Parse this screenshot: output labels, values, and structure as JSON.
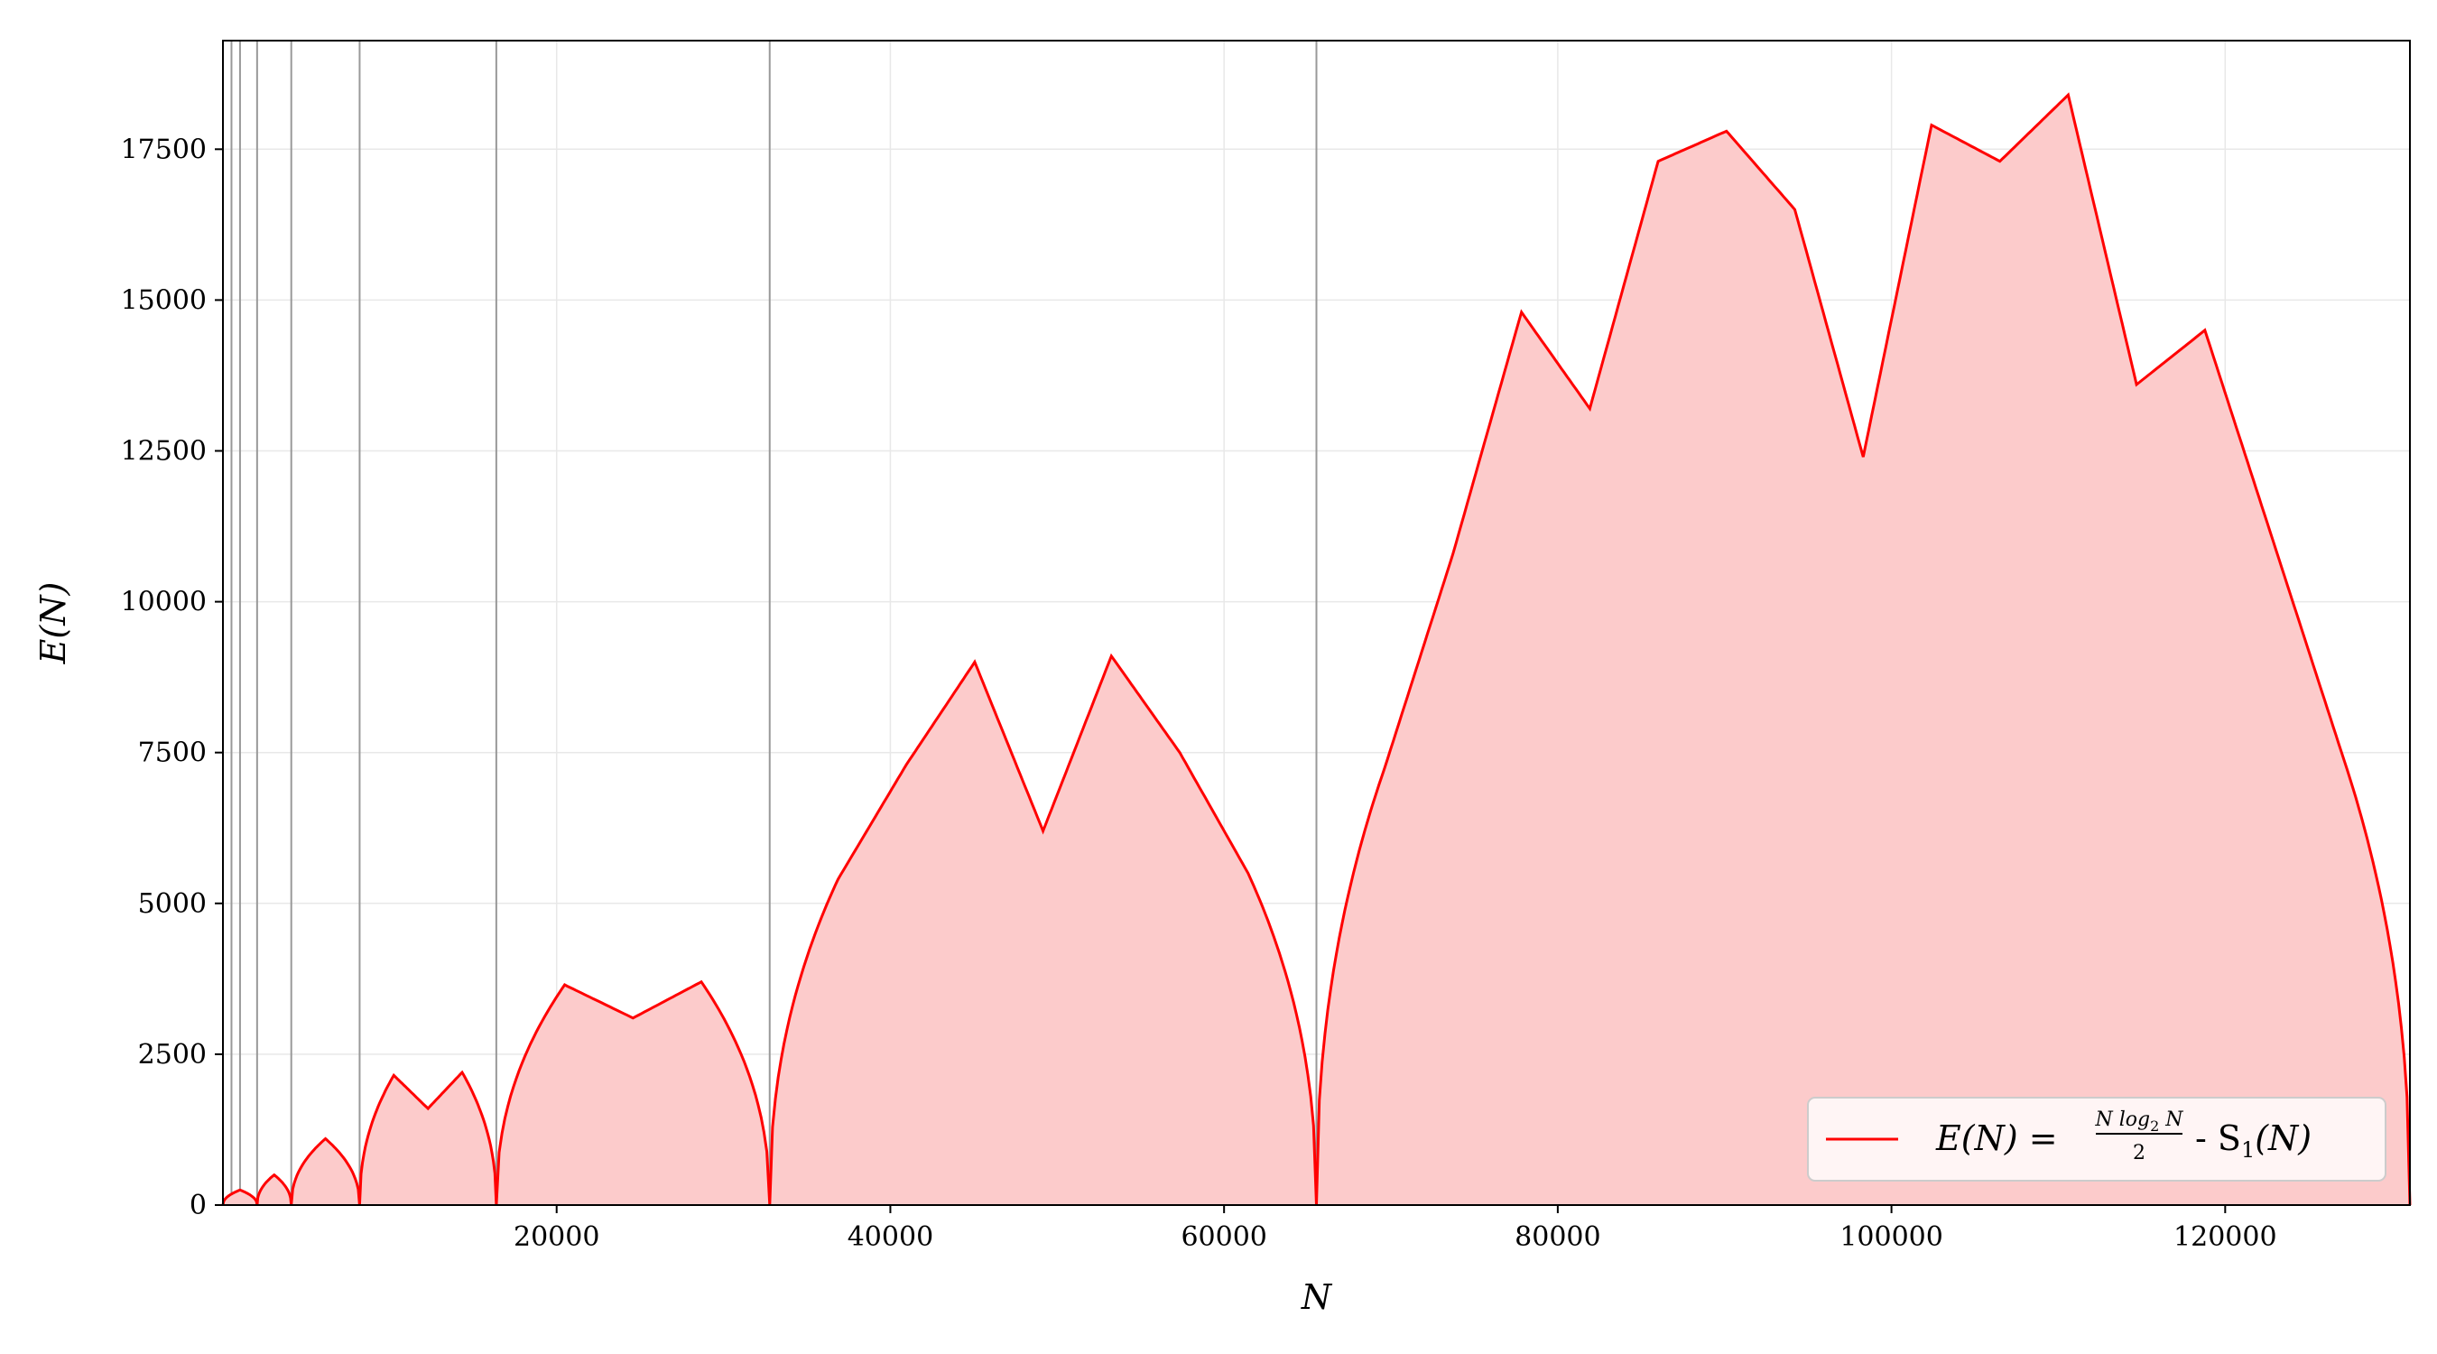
{
  "chart_data": {
    "type": "area",
    "xlabel": "N",
    "ylabel": "E(N)",
    "xlim": [
      0,
      131072
    ],
    "ylim": [
      0,
      19300
    ],
    "xticks": [
      20000,
      40000,
      60000,
      80000,
      100000,
      120000
    ],
    "yticks": [
      0,
      2500,
      5000,
      7500,
      10000,
      12500,
      15000,
      17500
    ],
    "grid": true,
    "legend_position": "lower-right",
    "vertical_markers": [
      512,
      1024,
      2048,
      4096,
      8192,
      16384,
      32768,
      65536
    ],
    "series": [
      {
        "name": "E(N) = N log2 N / 2 - S1(N)",
        "color": "#ff0000",
        "fill_color": "#fccbcb",
        "x": [
          0,
          1024,
          2048,
          3072,
          4096,
          6144,
          8192,
          10240,
          12288,
          14336,
          16384,
          20480,
          24576,
          28672,
          32768,
          36864,
          40960,
          45056,
          49152,
          53248,
          57344,
          61440,
          65536,
          69632,
          73728,
          77824,
          81920,
          86016,
          90112,
          94208,
          98304,
          102400,
          106496,
          110592,
          114688,
          118784,
          122880,
          126976,
          131072
        ],
        "values": [
          0,
          250,
          0,
          500,
          0,
          1100,
          0,
          2150,
          1600,
          2200,
          0,
          3650,
          3100,
          3700,
          0,
          5400,
          7300,
          9000,
          6200,
          9100,
          7500,
          5500,
          0,
          7250,
          10800,
          14800,
          13200,
          17300,
          17800,
          16500,
          12400,
          17900,
          17300,
          18400,
          13600,
          14500,
          11000,
          7500,
          0
        ]
      }
    ]
  },
  "legend": {
    "lhs": "E(N) =",
    "frac_num": "N log",
    "frac_sub": "2",
    "frac_num_tail": " N",
    "frac_den": "2",
    "mid": "- S",
    "s_sub": "1",
    "tail": "(N)"
  }
}
